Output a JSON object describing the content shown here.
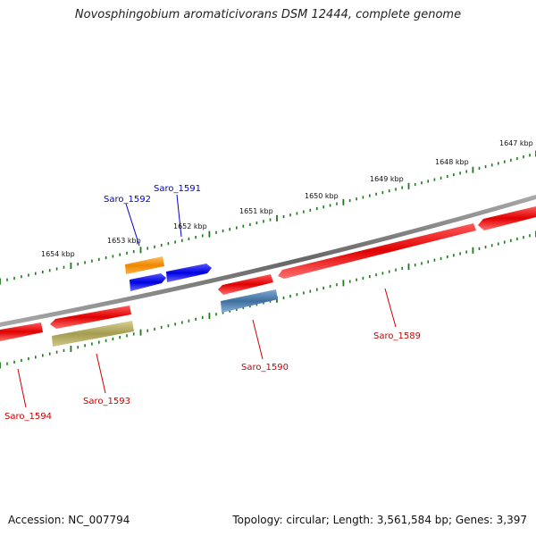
{
  "title": "Novosphingobium aromaticivorans DSM 12444, complete genome",
  "footer": {
    "accession": "Accession: NC_007794",
    "summary": "Topology: circular; Length: 3,561,584 bp; Genes: 3,397"
  },
  "scale_labels": [
    "1647 kbp",
    "1648 kbp",
    "1649 kbp",
    "1650 kbp",
    "1651 kbp",
    "1652 kbp",
    "1653 kbp",
    "1654 kbp"
  ],
  "genes": [
    {
      "name": "Saro_1589",
      "color": "#cc0000"
    },
    {
      "name": "Saro_1590",
      "color": "#cc0000"
    },
    {
      "name": "Saro_1591",
      "color": "#0000cc"
    },
    {
      "name": "Saro_1592",
      "color": "#0000cc"
    },
    {
      "name": "Saro_1593",
      "color": "#cc0000"
    },
    {
      "name": "Saro_1594",
      "color": "#cc0000"
    }
  ],
  "colors": {
    "backbone": "#888888",
    "ticks": "#1a7a1a",
    "red_feature": "#ee0000",
    "blue_feature": "#0000ee",
    "orange_feature": "#ff9900",
    "steel_feature": "#4477aa",
    "olive_feature": "#b0aa60"
  }
}
